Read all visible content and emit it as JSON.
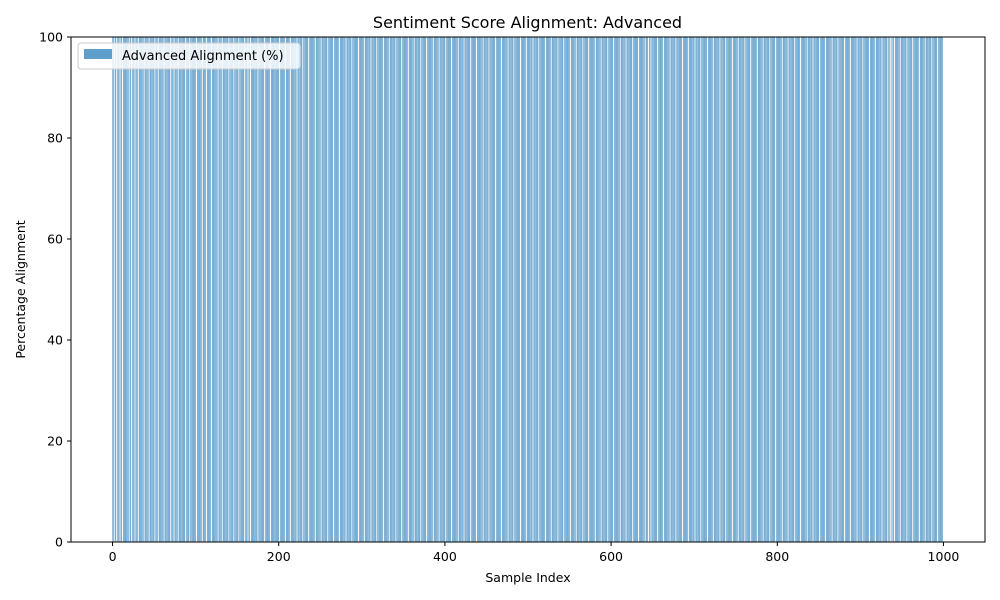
{
  "chart_data": {
    "type": "bar",
    "title": "Sentiment Score Alignment: Advanced",
    "xlabel": "Sample Index",
    "ylabel": "Percentage Alignment",
    "xlim": [
      -50,
      1050
    ],
    "ylim": [
      0,
      100
    ],
    "xticks": [
      0,
      200,
      400,
      600,
      800,
      1000
    ],
    "yticks": [
      0,
      20,
      40,
      60,
      80,
      100
    ],
    "grid": false,
    "legend": {
      "placement": "top-left"
    },
    "series": [
      {
        "name": "Advanced Alignment (%)",
        "color": "#5f9ecb",
        "x_start": 0,
        "x_end": 999,
        "value": 100,
        "missing_indices": [
          2,
          5,
          9,
          12,
          20,
          23,
          27,
          31,
          38,
          44,
          51,
          55,
          62,
          70,
          74,
          79,
          88,
          93,
          101,
          108,
          113,
          119,
          127,
          132,
          140,
          146,
          152,
          159,
          163,
          166,
          175,
          183,
          190,
          201,
          208,
          214,
          222,
          229,
          236,
          244,
          251,
          259,
          266,
          273,
          281,
          288,
          296,
          303,
          311,
          318,
          326,
          333,
          341,
          348,
          356,
          363,
          371,
          378,
          386,
          393,
          401,
          408,
          416,
          423,
          431,
          438,
          446,
          453,
          461,
          468,
          476,
          483,
          491,
          498,
          506,
          513,
          521,
          528,
          536,
          543,
          551,
          558,
          566,
          573,
          581,
          588,
          596,
          603,
          611,
          618,
          626,
          633,
          641,
          645,
          648,
          656,
          663,
          671,
          678,
          686,
          693,
          701,
          708,
          716,
          723,
          731,
          738,
          746,
          753,
          761,
          768,
          776,
          783,
          791,
          798,
          806,
          813,
          821,
          828,
          836,
          843,
          851,
          858,
          866,
          873,
          881,
          888,
          896,
          903,
          911,
          918,
          926,
          933,
          936,
          938,
          941,
          948,
          956,
          963,
          971,
          978,
          986,
          993
        ]
      }
    ]
  }
}
